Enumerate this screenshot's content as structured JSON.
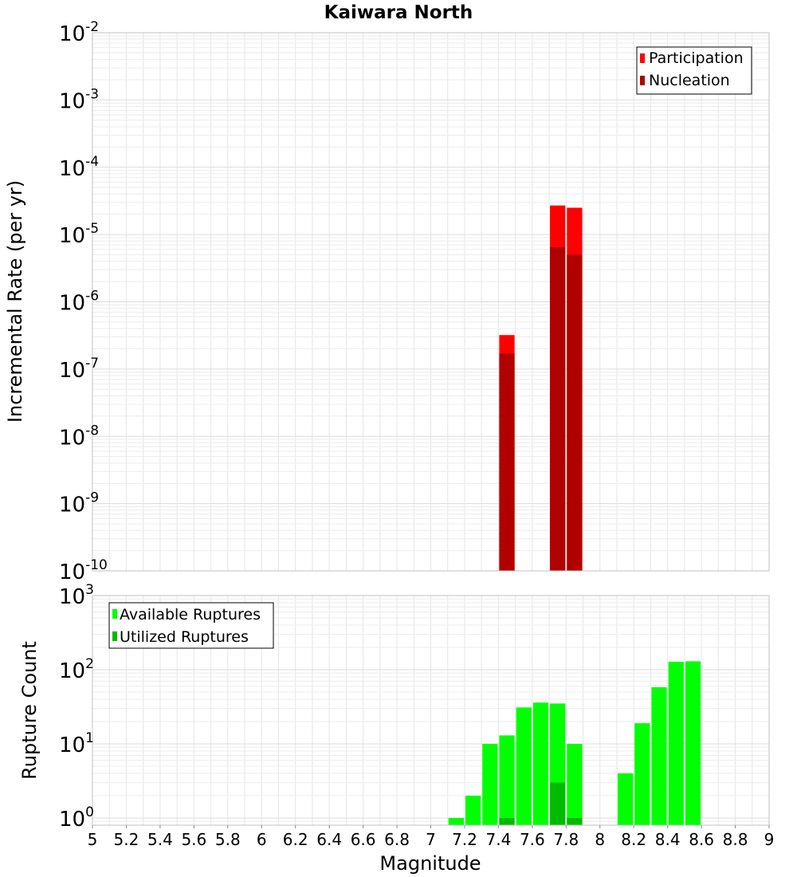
{
  "colors": {
    "participation": "#ff0000",
    "nucleation": "#b00000",
    "available": "#00ff00",
    "utilized": "#00bb00",
    "grid": "#e6e6e6",
    "axis_border": "#c0c0c0"
  },
  "chart_data": [
    {
      "type": "bar",
      "title": "Kaiwara North",
      "xlabel": "",
      "ylabel": "Incremental Rate (per yr)",
      "yscale": "log",
      "xlim": [
        5,
        9
      ],
      "ylim": [
        1e-10,
        0.01
      ],
      "y_tick_bases": [
        "10",
        "10",
        "10",
        "10",
        "10",
        "10",
        "10",
        "10",
        "10"
      ],
      "y_tick_exponents": [
        "-10",
        "-9",
        "-8",
        "-7",
        "-6",
        "-5",
        "-4",
        "-3",
        "-2"
      ],
      "legend": {
        "position": "top-right",
        "entries": [
          "Participation",
          "Nucleation"
        ]
      },
      "bin_width": 0.1,
      "series": [
        {
          "name": "Participation",
          "x": [
            7.45,
            7.75,
            7.85
          ],
          "values": [
            3.2e-07,
            2.7e-05,
            2.5e-05
          ]
        },
        {
          "name": "Nucleation",
          "x": [
            7.45,
            7.75,
            7.85
          ],
          "values": [
            1.7e-07,
            6.5e-06,
            5e-06
          ]
        }
      ]
    },
    {
      "type": "bar",
      "title": "",
      "xlabel": "Magnitude",
      "ylabel": "Rupture Count",
      "yscale": "log",
      "xlim": [
        5,
        9
      ],
      "ylim": [
        0.8,
        1000
      ],
      "y_tick_bases": [
        "10",
        "10",
        "10",
        "10"
      ],
      "y_tick_exponents": [
        "0",
        "1",
        "2",
        "3"
      ],
      "x_tick_labels": [
        "5",
        "5.2",
        "5.4",
        "5.6",
        "5.8",
        "6",
        "6.2",
        "6.4",
        "6.6",
        "6.8",
        "7",
        "7.2",
        "7.4",
        "7.6",
        "7.8",
        "8",
        "8.2",
        "8.4",
        "8.6",
        "8.8",
        "9"
      ],
      "legend": {
        "position": "top-left",
        "entries": [
          "Available Ruptures",
          "Utilized Ruptures"
        ]
      },
      "bin_width": 0.1,
      "series": [
        {
          "name": "Available Ruptures",
          "x": [
            7.15,
            7.25,
            7.35,
            7.45,
            7.55,
            7.65,
            7.75,
            7.85,
            8.15,
            8.25,
            8.35,
            8.45,
            8.55
          ],
          "values": [
            1,
            2,
            10,
            13,
            31,
            36,
            35,
            10,
            4,
            19,
            58,
            128,
            130
          ]
        },
        {
          "name": "Utilized Ruptures",
          "x": [
            7.45,
            7.75,
            7.85
          ],
          "values": [
            1,
            3,
            1
          ]
        }
      ]
    }
  ]
}
